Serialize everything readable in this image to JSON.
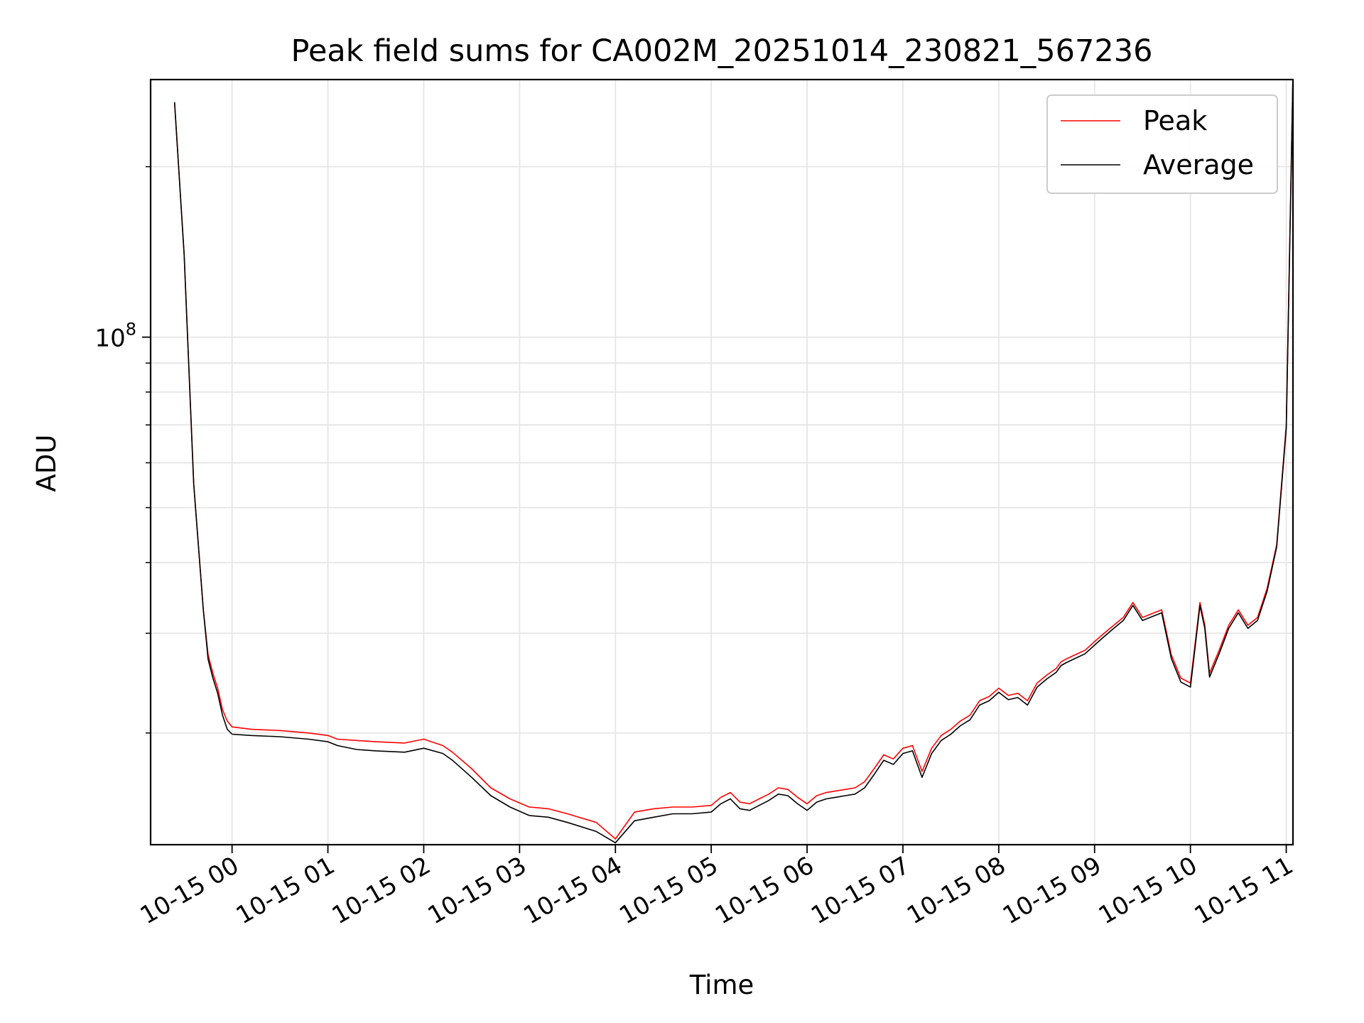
{
  "chart_data": {
    "type": "line",
    "title": "Peak field sums for CA002M_20251014_230821_567236",
    "xlabel": "Time",
    "ylabel": "ADU",
    "yscale": "log",
    "ylim": [
      12700000,
      285000000
    ],
    "xlim_hours_from_2025_10_14_23_00": [
      0.15,
      12.07
    ],
    "grid": true,
    "legend_position": "top-right",
    "x_tick_labels": [
      "10-15 00",
      "10-15 01",
      "10-15 02",
      "10-15 03",
      "10-15 04",
      "10-15 05",
      "10-15 06",
      "10-15 07",
      "10-15 08",
      "10-15 09",
      "10-15 10",
      "10-15 11"
    ],
    "x_tick_hours": [
      1,
      2,
      3,
      4,
      5,
      6,
      7,
      8,
      9,
      10,
      11,
      12
    ],
    "y_major_tick": {
      "value": 100000000,
      "label_base": "10",
      "label_exp": "8"
    },
    "y_minor_ticks": [
      20000000,
      30000000,
      40000000,
      50000000,
      60000000,
      70000000,
      80000000,
      90000000,
      200000000
    ],
    "x_hours": [
      0.4,
      0.5,
      0.6,
      0.7,
      0.75,
      0.8,
      0.85,
      0.9,
      0.95,
      1.0,
      1.2,
      1.5,
      1.8,
      2.0,
      2.1,
      2.3,
      2.5,
      2.8,
      3.0,
      3.2,
      3.3,
      3.5,
      3.7,
      3.9,
      4.1,
      4.3,
      4.5,
      4.8,
      5.0,
      5.2,
      5.4,
      5.6,
      5.8,
      6.0,
      6.1,
      6.2,
      6.3,
      6.4,
      6.5,
      6.6,
      6.7,
      6.8,
      6.9,
      7.0,
      7.1,
      7.2,
      7.3,
      7.4,
      7.5,
      7.6,
      7.7,
      7.8,
      7.9,
      8.0,
      8.1,
      8.2,
      8.3,
      8.4,
      8.5,
      8.6,
      8.7,
      8.8,
      8.9,
      9.0,
      9.1,
      9.2,
      9.3,
      9.4,
      9.5,
      9.6,
      9.65,
      9.7,
      9.8,
      9.9,
      10.0,
      10.1,
      10.2,
      10.3,
      10.4,
      10.5,
      10.6,
      10.7,
      10.8,
      10.9,
      11.0,
      11.1,
      11.15,
      11.2,
      11.3,
      11.4,
      11.5,
      11.6,
      11.7,
      11.8,
      11.9,
      12.0,
      12.07
    ],
    "series": [
      {
        "name": "Peak",
        "color": "#ff0000",
        "values": [
          260000000,
          140000000,
          55000000,
          33000000,
          27500000,
          25500000,
          24000000,
          22000000,
          21000000,
          20500000,
          20300000,
          20200000,
          20000000,
          19800000,
          19500000,
          19400000,
          19300000,
          19200000,
          19500000,
          19000000,
          18500000,
          17300000,
          16000000,
          15300000,
          14800000,
          14700000,
          14400000,
          13900000,
          13000000,
          14500000,
          14700000,
          14800000,
          14800000,
          14900000,
          15400000,
          15700000,
          15100000,
          15000000,
          15300000,
          15600000,
          16000000,
          15900000,
          15400000,
          15000000,
          15500000,
          15700000,
          15800000,
          15900000,
          16000000,
          16400000,
          17300000,
          18300000,
          18000000,
          18800000,
          19000000,
          17100000,
          18800000,
          19800000,
          20300000,
          21000000,
          21500000,
          22800000,
          23200000,
          24000000,
          23300000,
          23500000,
          22800000,
          24500000,
          25300000,
          26000000,
          26700000,
          27000000,
          27500000,
          28000000,
          29000000,
          30000000,
          31000000,
          32000000,
          34000000,
          32000000,
          32500000,
          33000000,
          27500000,
          25000000,
          24500000,
          34000000,
          31000000,
          25500000,
          28000000,
          31000000,
          33000000,
          31000000,
          32000000,
          36000000,
          43000000,
          70000000,
          290000000
        ]
      },
      {
        "name": "Average",
        "color": "#000000",
        "values": [
          260000000,
          140000000,
          55000000,
          33000000,
          27000000,
          25000000,
          23500000,
          21500000,
          20300000,
          19900000,
          19800000,
          19700000,
          19500000,
          19300000,
          19000000,
          18700000,
          18600000,
          18500000,
          18800000,
          18400000,
          17900000,
          16700000,
          15500000,
          14800000,
          14300000,
          14200000,
          13900000,
          13400000,
          12800000,
          14000000,
          14200000,
          14400000,
          14400000,
          14500000,
          15000000,
          15300000,
          14700000,
          14600000,
          14900000,
          15200000,
          15600000,
          15500000,
          15000000,
          14600000,
          15100000,
          15300000,
          15400000,
          15500000,
          15600000,
          16000000,
          16900000,
          17900000,
          17600000,
          18400000,
          18600000,
          16700000,
          18400000,
          19400000,
          19900000,
          20600000,
          21100000,
          22400000,
          22800000,
          23600000,
          22900000,
          23100000,
          22400000,
          24100000,
          24900000,
          25600000,
          26300000,
          26600000,
          27100000,
          27600000,
          28600000,
          29600000,
          30600000,
          31600000,
          33600000,
          31600000,
          32100000,
          32600000,
          27100000,
          24600000,
          24100000,
          33600000,
          30600000,
          25100000,
          27600000,
          30600000,
          32600000,
          30600000,
          31600000,
          35600000,
          42600000,
          69000000,
          290000000
        ]
      }
    ]
  },
  "legend": {
    "items": [
      {
        "label": "Peak",
        "color": "#ff0000"
      },
      {
        "label": "Average",
        "color": "#000000"
      }
    ]
  }
}
